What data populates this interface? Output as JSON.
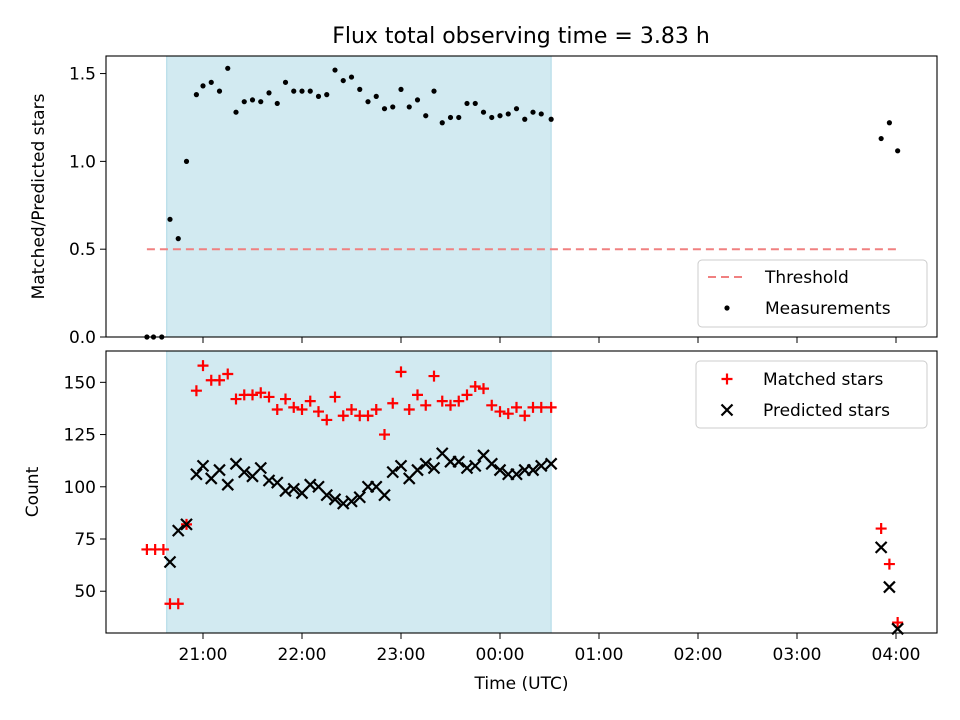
{
  "chart_data": [
    {
      "type": "scatter",
      "title": "Flux total observing time = 3.83 h",
      "ylabel": "Matched/Predicted stars",
      "xlabel": "",
      "ylim": [
        0,
        1.6
      ],
      "yticks": [
        0.0,
        0.5,
        1.0,
        1.5
      ],
      "ytick_labels": [
        "0.0",
        "0.5",
        "1.0",
        "1.5"
      ],
      "shaded_interval": {
        "start": "20:38",
        "end": "00:31",
        "color": "#add8e6"
      },
      "threshold": {
        "name": "Threshold",
        "value": 0.5,
        "from": "20:26",
        "to": "04:01",
        "color": "#f08080"
      },
      "legend": {
        "placement": "lower-right",
        "entries": [
          "Threshold",
          "Measurements"
        ]
      },
      "series": [
        {
          "name": "Measurements",
          "marker": "dot",
          "color": "#000000",
          "points": [
            [
              "20:26",
              0.0
            ],
            [
              "20:30",
              0.0
            ],
            [
              "20:35",
              0.0
            ],
            [
              "20:40",
              0.67
            ],
            [
              "20:45",
              0.56
            ],
            [
              "20:50",
              1.0
            ],
            [
              "20:56",
              1.38
            ],
            [
              "21:00",
              1.43
            ],
            [
              "21:05",
              1.45
            ],
            [
              "21:10",
              1.4
            ],
            [
              "21:15",
              1.53
            ],
            [
              "21:20",
              1.28
            ],
            [
              "21:25",
              1.34
            ],
            [
              "21:30",
              1.35
            ],
            [
              "21:35",
              1.34
            ],
            [
              "21:40",
              1.39
            ],
            [
              "21:45",
              1.33
            ],
            [
              "21:50",
              1.45
            ],
            [
              "21:55",
              1.4
            ],
            [
              "22:00",
              1.4
            ],
            [
              "22:05",
              1.4
            ],
            [
              "22:10",
              1.37
            ],
            [
              "22:15",
              1.38
            ],
            [
              "22:20",
              1.52
            ],
            [
              "22:25",
              1.46
            ],
            [
              "22:30",
              1.48
            ],
            [
              "22:35",
              1.41
            ],
            [
              "22:40",
              1.34
            ],
            [
              "22:45",
              1.37
            ],
            [
              "22:50",
              1.3
            ],
            [
              "22:55",
              1.31
            ],
            [
              "23:00",
              1.41
            ],
            [
              "23:05",
              1.31
            ],
            [
              "23:10",
              1.35
            ],
            [
              "23:15",
              1.26
            ],
            [
              "23:20",
              1.4
            ],
            [
              "23:25",
              1.22
            ],
            [
              "23:30",
              1.25
            ],
            [
              "23:35",
              1.25
            ],
            [
              "23:40",
              1.33
            ],
            [
              "23:45",
              1.33
            ],
            [
              "23:50",
              1.28
            ],
            [
              "23:55",
              1.25
            ],
            [
              "00:00",
              1.26
            ],
            [
              "00:05",
              1.27
            ],
            [
              "00:10",
              1.3
            ],
            [
              "00:15",
              1.24
            ],
            [
              "00:20",
              1.28
            ],
            [
              "00:25",
              1.27
            ],
            [
              "00:31",
              1.24
            ],
            [
              "03:51",
              1.13
            ],
            [
              "03:56",
              1.22
            ],
            [
              "04:01",
              1.06
            ]
          ]
        }
      ]
    },
    {
      "type": "scatter",
      "title": "",
      "ylabel": "Count",
      "xlabel": "Time (UTC)",
      "ylim": [
        30,
        165
      ],
      "yticks": [
        50,
        75,
        100,
        125,
        150
      ],
      "ytick_labels": [
        "50",
        "75",
        "100",
        "125",
        "150"
      ],
      "xticks": [
        "21:00",
        "22:00",
        "23:00",
        "00:00",
        "01:00",
        "02:00",
        "03:00",
        "04:00"
      ],
      "shaded_interval": {
        "start": "20:38",
        "end": "00:31",
        "color": "#add8e6"
      },
      "legend": {
        "placement": "top-right",
        "entries": [
          "Matched stars",
          "Predicted stars"
        ]
      },
      "series": [
        {
          "name": "Matched stars",
          "marker": "plus",
          "color": "#ff0000",
          "points": [
            [
              "20:26",
              70
            ],
            [
              "20:31",
              70
            ],
            [
              "20:36",
              70
            ],
            [
              "20:40",
              44
            ],
            [
              "20:45",
              44
            ],
            [
              "20:50",
              82
            ],
            [
              "20:56",
              146
            ],
            [
              "21:00",
              158
            ],
            [
              "21:05",
              151
            ],
            [
              "21:10",
              151
            ],
            [
              "21:15",
              154
            ],
            [
              "21:20",
              142
            ],
            [
              "21:25",
              144
            ],
            [
              "21:30",
              144
            ],
            [
              "21:35",
              145
            ],
            [
              "21:40",
              143
            ],
            [
              "21:45",
              137
            ],
            [
              "21:50",
              142
            ],
            [
              "21:55",
              138
            ],
            [
              "22:00",
              137
            ],
            [
              "22:05",
              141
            ],
            [
              "22:10",
              136
            ],
            [
              "22:15",
              132
            ],
            [
              "22:20",
              143
            ],
            [
              "22:25",
              134
            ],
            [
              "22:30",
              137
            ],
            [
              "22:35",
              134
            ],
            [
              "22:40",
              134
            ],
            [
              "22:45",
              137
            ],
            [
              "22:50",
              125
            ],
            [
              "22:55",
              140
            ],
            [
              "23:00",
              155
            ],
            [
              "23:05",
              137
            ],
            [
              "23:10",
              144
            ],
            [
              "23:15",
              139
            ],
            [
              "23:20",
              153
            ],
            [
              "23:25",
              141
            ],
            [
              "23:30",
              139
            ],
            [
              "23:35",
              141
            ],
            [
              "23:40",
              144
            ],
            [
              "23:45",
              148
            ],
            [
              "23:50",
              147
            ],
            [
              "23:55",
              139
            ],
            [
              "00:00",
              136
            ],
            [
              "00:05",
              135
            ],
            [
              "00:10",
              138
            ],
            [
              "00:15",
              134
            ],
            [
              "00:20",
              138
            ],
            [
              "00:25",
              138
            ],
            [
              "00:31",
              138
            ],
            [
              "03:51",
              80
            ],
            [
              "03:56",
              63
            ],
            [
              "04:01",
              35
            ]
          ]
        },
        {
          "name": "Predicted stars",
          "marker": "x",
          "color": "#000000",
          "points": [
            [
              "20:40",
              64
            ],
            [
              "20:45",
              79
            ],
            [
              "20:50",
              82
            ],
            [
              "20:56",
              106
            ],
            [
              "21:00",
              110
            ],
            [
              "21:05",
              104
            ],
            [
              "21:10",
              108
            ],
            [
              "21:15",
              101
            ],
            [
              "21:20",
              111
            ],
            [
              "21:25",
              107
            ],
            [
              "21:30",
              105
            ],
            [
              "21:35",
              109
            ],
            [
              "21:40",
              103
            ],
            [
              "21:45",
              102
            ],
            [
              "21:50",
              98
            ],
            [
              "21:55",
              99
            ],
            [
              "22:00",
              97
            ],
            [
              "22:05",
              101
            ],
            [
              "22:10",
              100
            ],
            [
              "22:15",
              96
            ],
            [
              "22:20",
              94
            ],
            [
              "22:25",
              92
            ],
            [
              "22:30",
              93
            ],
            [
              "22:35",
              95
            ],
            [
              "22:40",
              100
            ],
            [
              "22:45",
              100
            ],
            [
              "22:50",
              96
            ],
            [
              "22:55",
              107
            ],
            [
              "23:00",
              110
            ],
            [
              "23:05",
              104
            ],
            [
              "23:10",
              108
            ],
            [
              "23:15",
              111
            ],
            [
              "23:20",
              109
            ],
            [
              "23:25",
              116
            ],
            [
              "23:30",
              112
            ],
            [
              "23:35",
              112
            ],
            [
              "23:40",
              109
            ],
            [
              "23:45",
              110
            ],
            [
              "23:50",
              115
            ],
            [
              "23:55",
              111
            ],
            [
              "00:00",
              108
            ],
            [
              "00:05",
              106
            ],
            [
              "00:10",
              106
            ],
            [
              "00:15",
              108
            ],
            [
              "00:20",
              108
            ],
            [
              "00:25",
              110
            ],
            [
              "00:31",
              111
            ],
            [
              "03:51",
              71
            ],
            [
              "03:56",
              52
            ],
            [
              "04:01",
              32
            ]
          ]
        }
      ]
    }
  ]
}
